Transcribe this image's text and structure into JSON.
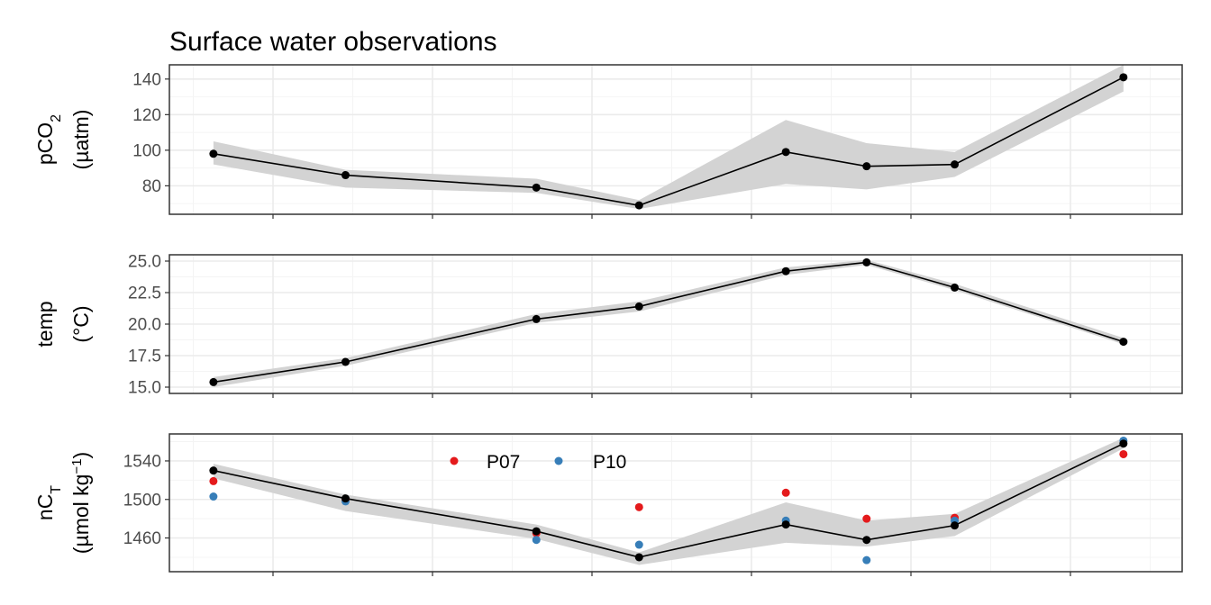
{
  "chart_data": {
    "type": "line",
    "title": "Surface water observations",
    "x": [
      0.3,
      1.2,
      2.5,
      3.2,
      4.2,
      4.75,
      5.35,
      6.5
    ],
    "xlim": [
      0,
      6.9
    ],
    "panels": [
      {
        "ylabel_lines": [
          {
            "base": "pCO",
            "sub": "2",
            "sup": ""
          },
          {
            "base": "(µatm)",
            "sub": "",
            "sup": ""
          }
        ],
        "ylim": [
          64,
          148
        ],
        "yticks": [
          80,
          100,
          120,
          140
        ],
        "tick_labels": [
          "80",
          "100",
          "120",
          "140"
        ],
        "series": [
          {
            "values": [
              98,
              86,
              79,
              69,
              99,
              91,
              92,
              141
            ],
            "band_lower": [
              92,
              79,
              76,
              67,
              81,
              78,
              85,
              133
            ],
            "band_upper": [
              105,
              89,
              84,
              72,
              117,
              104,
              99,
              148
            ]
          }
        ]
      },
      {
        "ylabel_lines": [
          {
            "base": "temp",
            "sub": "",
            "sup": ""
          },
          {
            "base": "(°C)",
            "sub": "",
            "sup": ""
          }
        ],
        "ylim": [
          14.5,
          25.5
        ],
        "yticks": [
          15.0,
          17.5,
          20.0,
          22.5,
          25.0
        ],
        "tick_labels": [
          "15.0",
          "17.5",
          "20.0",
          "22.5",
          "25.0"
        ],
        "series": [
          {
            "values": [
              15.4,
              17.0,
              20.4,
              21.4,
              24.2,
              24.9,
              22.9,
              18.6
            ],
            "band_lower": [
              15.0,
              16.7,
              20.1,
              21.0,
              23.9,
              24.7,
              22.7,
              18.4
            ],
            "band_upper": [
              15.8,
              17.3,
              20.8,
              21.8,
              24.5,
              25.1,
              23.2,
              18.9
            ]
          }
        ]
      },
      {
        "ylabel_lines": [
          {
            "base": "nC",
            "sub": "T",
            "sup": ""
          },
          {
            "base": "(µmol kg",
            "sub": "",
            "sup": "−1",
            "after": ")"
          }
        ],
        "ylim": [
          1425,
          1568
        ],
        "yticks": [
          1460,
          1500,
          1540
        ],
        "tick_labels": [
          "1460",
          "1500",
          "1540"
        ],
        "series": [
          {
            "values": [
              1530,
              1501,
              1467,
              1440,
              1474,
              1458,
              1473,
              1558
            ],
            "band_lower": [
              1522,
              1488,
              1459,
              1432,
              1455,
              1451,
              1462,
              1553
            ],
            "band_upper": [
              1537,
              1505,
              1474,
              1445,
              1497,
              1478,
              1485,
              1564
            ]
          }
        ],
        "points": [
          {
            "name": "P07",
            "color": "#e41a1c",
            "values": [
              1519,
              1500,
              1465,
              1492,
              1507,
              1480,
              1481,
              1547
            ]
          },
          {
            "name": "P10",
            "color": "#377eb8",
            "values": [
              1503,
              1498,
              1458,
              1453,
              1478,
              1437,
              1478,
              1561
            ]
          }
        ]
      }
    ],
    "legend": {
      "placement": "inside-bottom-panel-top-center",
      "entries": [
        {
          "name": "P07",
          "color": "#e41a1c"
        },
        {
          "name": "P10",
          "color": "#377eb8"
        }
      ]
    },
    "colors": {
      "line": "#000000",
      "band": "#d3d3d3",
      "grid_major": "#ebebeb",
      "grid_minor": "#f4f4f4",
      "border": "#333333"
    },
    "grid": true
  }
}
